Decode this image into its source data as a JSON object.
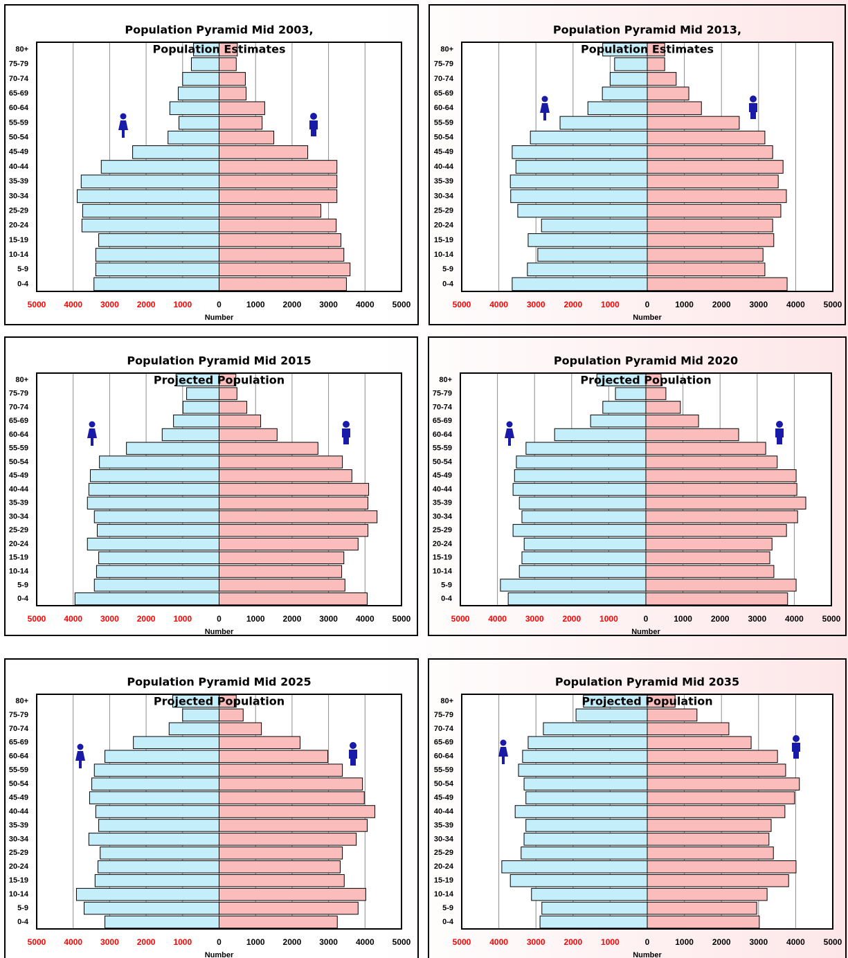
{
  "chart_data": [
    {
      "type": "pyramid",
      "title": "Population Pyramid Mid 2003,",
      "subtitle": "Population Estimates",
      "xlabel": "Number",
      "categories": [
        "80+",
        "75-79",
        "70-74",
        "65-69",
        "60-64",
        "55-59",
        "50-54",
        "45-49",
        "40-44",
        "35-39",
        "30-34",
        "25-29",
        "20-24",
        "15-19",
        "10-14",
        "5-9",
        "0-4"
      ],
      "series": [
        {
          "color": "#c4eefa",
          "values": [
            -700,
            -760,
            -1000,
            -1120,
            -1350,
            -1100,
            -1400,
            -2370,
            -3230,
            -3780,
            -3890,
            -3740,
            -3760,
            -3300,
            -3380,
            -3380,
            -3430
          ]
        },
        {
          "color": "#fbbcbc",
          "values": [
            500,
            470,
            720,
            740,
            1250,
            1180,
            1500,
            2430,
            3230,
            3230,
            3230,
            2790,
            3210,
            3340,
            3420,
            3590,
            3490
          ]
        }
      ],
      "xlim": [
        -5000,
        5000
      ],
      "xticks": [
        {
          "value": -5000,
          "label": "5000"
        },
        {
          "value": -4000,
          "label": "4000"
        },
        {
          "value": -3000,
          "label": "3000"
        },
        {
          "value": -2000,
          "label": "2000"
        },
        {
          "value": -1000,
          "label": "1000"
        },
        0,
        1000,
        2000,
        3000,
        4000,
        5000
      ],
      "grid": true,
      "negative_tick_color": "#ff0000"
    },
    {
      "type": "pyramid",
      "title": "Population Pyramid Mid 2013,",
      "subtitle": "Population Estimates",
      "xlabel": "Number",
      "categories": [
        "80+",
        "75-79",
        "70-74",
        "65-69",
        "60-64",
        "55-59",
        "50-54",
        "45-49",
        "40-44",
        "35-39",
        "30-34",
        "25-29",
        "20-24",
        "15-19",
        "10-14",
        "5-9",
        "0-4"
      ],
      "series": [
        {
          "color": "#c4eefa",
          "values": [
            -1200,
            -880,
            -1000,
            -1210,
            -1600,
            -2350,
            -3150,
            -3640,
            -3540,
            -3690,
            -3680,
            -3490,
            -2850,
            -3210,
            -2950,
            -3230,
            -3640
          ]
        },
        {
          "color": "#fbbcbc",
          "values": [
            470,
            470,
            780,
            1120,
            1460,
            2480,
            3170,
            3380,
            3660,
            3530,
            3750,
            3600,
            3380,
            3410,
            3120,
            3170,
            3770
          ]
        }
      ],
      "xlim": [
        -5000,
        5000
      ],
      "xticks": [
        {
          "value": -5000,
          "label": "5000"
        },
        {
          "value": -4000,
          "label": "4000"
        },
        {
          "value": -3000,
          "label": "3000"
        },
        {
          "value": -2000,
          "label": "2000"
        },
        {
          "value": -1000,
          "label": "1000"
        },
        0,
        1000,
        2000,
        3000,
        4000,
        5000
      ],
      "grid": true,
      "negative_tick_color": "#ff0000"
    },
    {
      "type": "pyramid",
      "title": "Population Pyramid Mid 2015",
      "subtitle": "Projected Population",
      "xlabel": "Number",
      "categories": [
        "80+",
        "75-79",
        "70-74",
        "65-69",
        "60-64",
        "55-59",
        "50-54",
        "45-49",
        "40-44",
        "35-39",
        "30-34",
        "25-29",
        "20-24",
        "15-19",
        "10-14",
        "5-9",
        "0-4"
      ],
      "series": [
        {
          "color": "#c4eefa",
          "values": [
            -1180,
            -890,
            -990,
            -1250,
            -1560,
            -2540,
            -3280,
            -3530,
            -3570,
            -3610,
            -3420,
            -3340,
            -3610,
            -3300,
            -3360,
            -3420,
            -3950
          ]
        },
        {
          "color": "#fbbcbc",
          "values": [
            460,
            490,
            760,
            1140,
            1590,
            2710,
            3380,
            3640,
            4100,
            4080,
            4330,
            4080,
            3810,
            3420,
            3360,
            3450,
            4060
          ]
        }
      ],
      "xlim": [
        -5000,
        5000
      ],
      "xticks": [
        {
          "value": -5000,
          "label": "5000"
        },
        {
          "value": -4000,
          "label": "4000"
        },
        {
          "value": -3000,
          "label": "3000"
        },
        {
          "value": -2000,
          "label": "2000"
        },
        {
          "value": -1000,
          "label": "1000"
        },
        0,
        1000,
        2000,
        3000,
        4000,
        5000
      ],
      "grid": true,
      "negative_tick_color": "#ff0000"
    },
    {
      "type": "pyramid",
      "title": "Population Pyramid Mid 2020",
      "subtitle": "Projected Population",
      "xlabel": "Number",
      "categories": [
        "80+",
        "75-79",
        "70-74",
        "65-69",
        "60-64",
        "55-59",
        "50-54",
        "45-49",
        "40-44",
        "35-39",
        "30-34",
        "25-29",
        "20-24",
        "15-19",
        "10-14",
        "5-9",
        "0-4"
      ],
      "series": [
        {
          "color": "#c4eefa",
          "values": [
            -1320,
            -820,
            -1160,
            -1490,
            -2460,
            -3230,
            -3490,
            -3540,
            -3580,
            -3410,
            -3340,
            -3580,
            -3280,
            -3340,
            -3410,
            -3920,
            -3710
          ]
        },
        {
          "color": "#fbbcbc",
          "values": [
            410,
            540,
            930,
            1420,
            2500,
            3230,
            3540,
            4050,
            4070,
            4310,
            4090,
            3790,
            3400,
            3340,
            3450,
            4050,
            3820
          ]
        }
      ],
      "xlim": [
        -5000,
        5000
      ],
      "xticks": [
        {
          "value": -5000,
          "label": "5000"
        },
        {
          "value": -4000,
          "label": "4000"
        },
        {
          "value": -3000,
          "label": "3000"
        },
        {
          "value": -2000,
          "label": "2000"
        },
        {
          "value": -1000,
          "label": "1000"
        },
        0,
        1000,
        2000,
        3000,
        4000,
        5000
      ],
      "grid": true,
      "negative_tick_color": "#ff0000"
    },
    {
      "type": "pyramid",
      "title": "Population Pyramid Mid 2025",
      "subtitle": "Projected Population",
      "xlabel": "Number",
      "categories": [
        "80+",
        "75-79",
        "70-74",
        "65-69",
        "60-64",
        "55-59",
        "50-54",
        "45-49",
        "40-44",
        "35-39",
        "30-34",
        "25-29",
        "20-24",
        "15-19",
        "10-14",
        "5-9",
        "0-4"
      ],
      "series": [
        {
          "color": "#c4eefa",
          "values": [
            -1270,
            -1000,
            -1370,
            -2350,
            -3130,
            -3420,
            -3490,
            -3550,
            -3380,
            -3300,
            -3570,
            -3260,
            -3320,
            -3400,
            -3910,
            -3700,
            -3130
          ]
        },
        {
          "color": "#fbbcbc",
          "values": [
            470,
            660,
            1160,
            2220,
            2980,
            3380,
            3930,
            3980,
            4270,
            4060,
            3760,
            3380,
            3320,
            3430,
            4020,
            3810,
            3240
          ]
        }
      ],
      "xlim": [
        -5000,
        5000
      ],
      "xticks": [
        {
          "value": -5000,
          "label": "5000"
        },
        {
          "value": -4000,
          "label": "4000"
        },
        {
          "value": -3000,
          "label": "3000"
        },
        {
          "value": -2000,
          "label": "2000"
        },
        {
          "value": -1000,
          "label": "1000"
        },
        0,
        1000,
        2000,
        3000,
        4000,
        5000
      ],
      "grid": true,
      "negative_tick_color": "#ff0000"
    },
    {
      "type": "pyramid",
      "title": "Population Pyramid Mid 2035",
      "subtitle": "Projected Population",
      "xlabel": "Number",
      "categories": [
        "80+",
        "75-79",
        "70-74",
        "65-69",
        "60-64",
        "55-59",
        "50-54",
        "45-49",
        "40-44",
        "35-39",
        "30-34",
        "25-29",
        "20-24",
        "15-19",
        "10-14",
        "5-9",
        "0-4"
      ],
      "series": [
        {
          "color": "#c4eefa",
          "values": [
            -1720,
            -1920,
            -2800,
            -3210,
            -3360,
            -3470,
            -3320,
            -3270,
            -3560,
            -3270,
            -3320,
            -3400,
            -3920,
            -3690,
            -3120,
            -2840,
            -2890
          ]
        },
        {
          "color": "#fbbcbc",
          "values": [
            750,
            1340,
            2200,
            2800,
            3510,
            3730,
            4100,
            3970,
            3710,
            3340,
            3280,
            3400,
            4010,
            3810,
            3230,
            2950,
            3020
          ]
        }
      ],
      "xlim": [
        -5000,
        5000
      ],
      "xticks": [
        {
          "value": -5000,
          "label": "5000"
        },
        {
          "value": -4000,
          "label": "4000"
        },
        {
          "value": -3000,
          "label": "3000"
        },
        {
          "value": -2000,
          "label": "2000"
        },
        {
          "value": -1000,
          "label": "1000"
        },
        0,
        1000,
        2000,
        3000,
        4000,
        5000
      ],
      "grid": true,
      "negative_tick_color": "#ff0000"
    }
  ]
}
